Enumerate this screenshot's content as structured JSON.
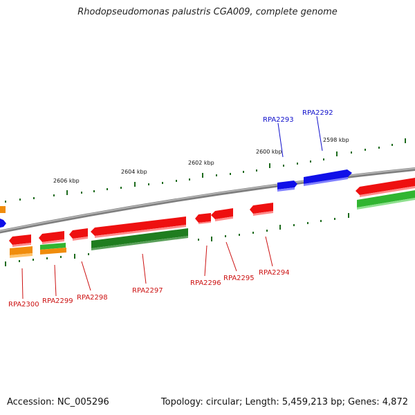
{
  "title": "Rhodopseudomonas palustris CGA009, complete genome",
  "footer": {
    "accession": "Accession: NC_005296",
    "summary": "Topology: circular; Length: 5,459,213 bp; Genes: 4,872"
  },
  "scale_labels": [
    "2606 kbp",
    "2604 kbp",
    "2602 kbp",
    "2600 kbp",
    "2598 kbp"
  ],
  "gene_labels_forward": [
    "RPA2293",
    "RPA2292"
  ],
  "gene_labels_reverse": [
    "RPA2300",
    "RPA2299",
    "RPA2298",
    "RPA2297",
    "RPA2296",
    "RPA2295",
    "RPA2294"
  ],
  "colors": {
    "forward_gene": "#1010e8",
    "reverse_gene": "#ee1010",
    "reverse_gene_2": "#f08c0c",
    "other_gene": "#31b531",
    "other_gene_2": "#1f7d1f",
    "forward_label": "#1010cc",
    "reverse_label": "#cc1010",
    "backbone": "#8a8a8a",
    "tick": "#1d6b1d"
  }
}
